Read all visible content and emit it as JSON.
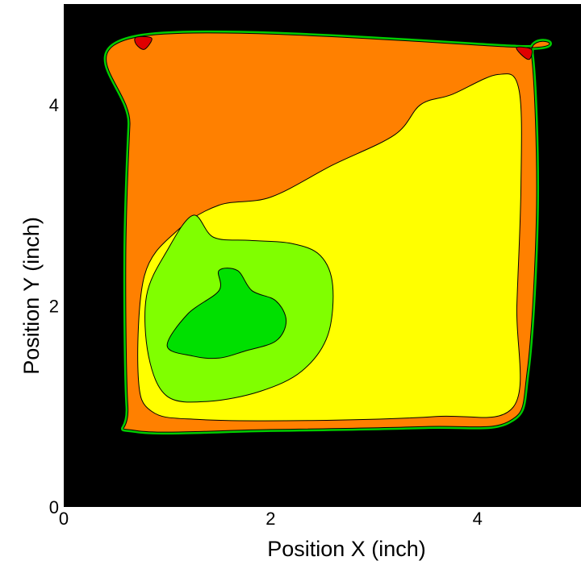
{
  "chart_data": {
    "type": "heatmap",
    "subtype": "filled-contour",
    "title": "",
    "xlabel": "Position X (inch)",
    "ylabel": "Position Y (inch)",
    "xlim": [
      0,
      5
    ],
    "ylim": [
      0,
      5
    ],
    "xticks": [
      0,
      2,
      4
    ],
    "yticks": [
      0,
      2,
      4
    ],
    "grid": false,
    "legend": "none",
    "colors": {
      "background": "#000000",
      "edge": "#00cc00",
      "green_light": "#80ff00",
      "green_dark": "#00e000",
      "yellow": "#ffff00",
      "orange": "#ff8000",
      "red": "#e00000",
      "contour_line": "#000000"
    },
    "regions": [
      {
        "level": "orange",
        "polygon": [
          [
            0.7,
            4.67
          ],
          [
            4.38,
            4.57
          ],
          [
            4.52,
            4.5
          ],
          [
            4.57,
            3.0
          ],
          [
            4.48,
            1.35
          ],
          [
            4.3,
            0.85
          ],
          [
            3.5,
            0.8
          ],
          [
            2.0,
            0.77
          ],
          [
            0.7,
            0.76
          ],
          [
            0.62,
            1.0
          ],
          [
            0.6,
            2.5
          ],
          [
            0.64,
            3.8
          ],
          [
            0.7,
            4.67
          ]
        ]
      },
      {
        "level": "yellow",
        "polygon": [
          [
            0.72,
            1.3
          ],
          [
            0.78,
            2.3
          ],
          [
            1.1,
            2.75
          ],
          [
            1.5,
            3.0
          ],
          [
            2.0,
            3.08
          ],
          [
            2.6,
            3.4
          ],
          [
            3.2,
            3.7
          ],
          [
            3.45,
            4.0
          ],
          [
            3.75,
            4.1
          ],
          [
            4.2,
            4.3
          ],
          [
            4.4,
            4.15
          ],
          [
            4.42,
            3.2
          ],
          [
            4.38,
            2.0
          ],
          [
            4.35,
            1.0
          ],
          [
            3.6,
            0.9
          ],
          [
            2.4,
            0.86
          ],
          [
            1.3,
            0.87
          ],
          [
            0.85,
            0.95
          ],
          [
            0.72,
            1.3
          ]
        ]
      },
      {
        "level": "green_light",
        "polygon": [
          [
            0.8,
            2.1
          ],
          [
            1.0,
            2.55
          ],
          [
            1.25,
            2.9
          ],
          [
            1.45,
            2.68
          ],
          [
            1.8,
            2.65
          ],
          [
            2.2,
            2.62
          ],
          [
            2.48,
            2.5
          ],
          [
            2.6,
            2.2
          ],
          [
            2.55,
            1.7
          ],
          [
            2.3,
            1.35
          ],
          [
            1.9,
            1.15
          ],
          [
            1.4,
            1.05
          ],
          [
            1.0,
            1.1
          ],
          [
            0.82,
            1.5
          ],
          [
            0.8,
            2.1
          ]
        ]
      },
      {
        "level": "green_dark",
        "polygon": [
          [
            1.0,
            1.6
          ],
          [
            1.2,
            1.92
          ],
          [
            1.5,
            2.15
          ],
          [
            1.5,
            2.35
          ],
          [
            1.68,
            2.35
          ],
          [
            1.82,
            2.15
          ],
          [
            2.05,
            2.05
          ],
          [
            2.15,
            1.85
          ],
          [
            2.05,
            1.65
          ],
          [
            1.75,
            1.55
          ],
          [
            1.5,
            1.48
          ],
          [
            1.25,
            1.5
          ],
          [
            1.0,
            1.6
          ]
        ]
      },
      {
        "level": "red",
        "polygon": [
          [
            0.7,
            4.67
          ],
          [
            0.85,
            4.66
          ],
          [
            0.78,
            4.55
          ],
          [
            0.7,
            4.6
          ]
        ]
      },
      {
        "level": "red",
        "polygon": [
          [
            4.38,
            4.57
          ],
          [
            4.52,
            4.55
          ],
          [
            4.5,
            4.45
          ],
          [
            4.42,
            4.5
          ]
        ]
      }
    ]
  }
}
